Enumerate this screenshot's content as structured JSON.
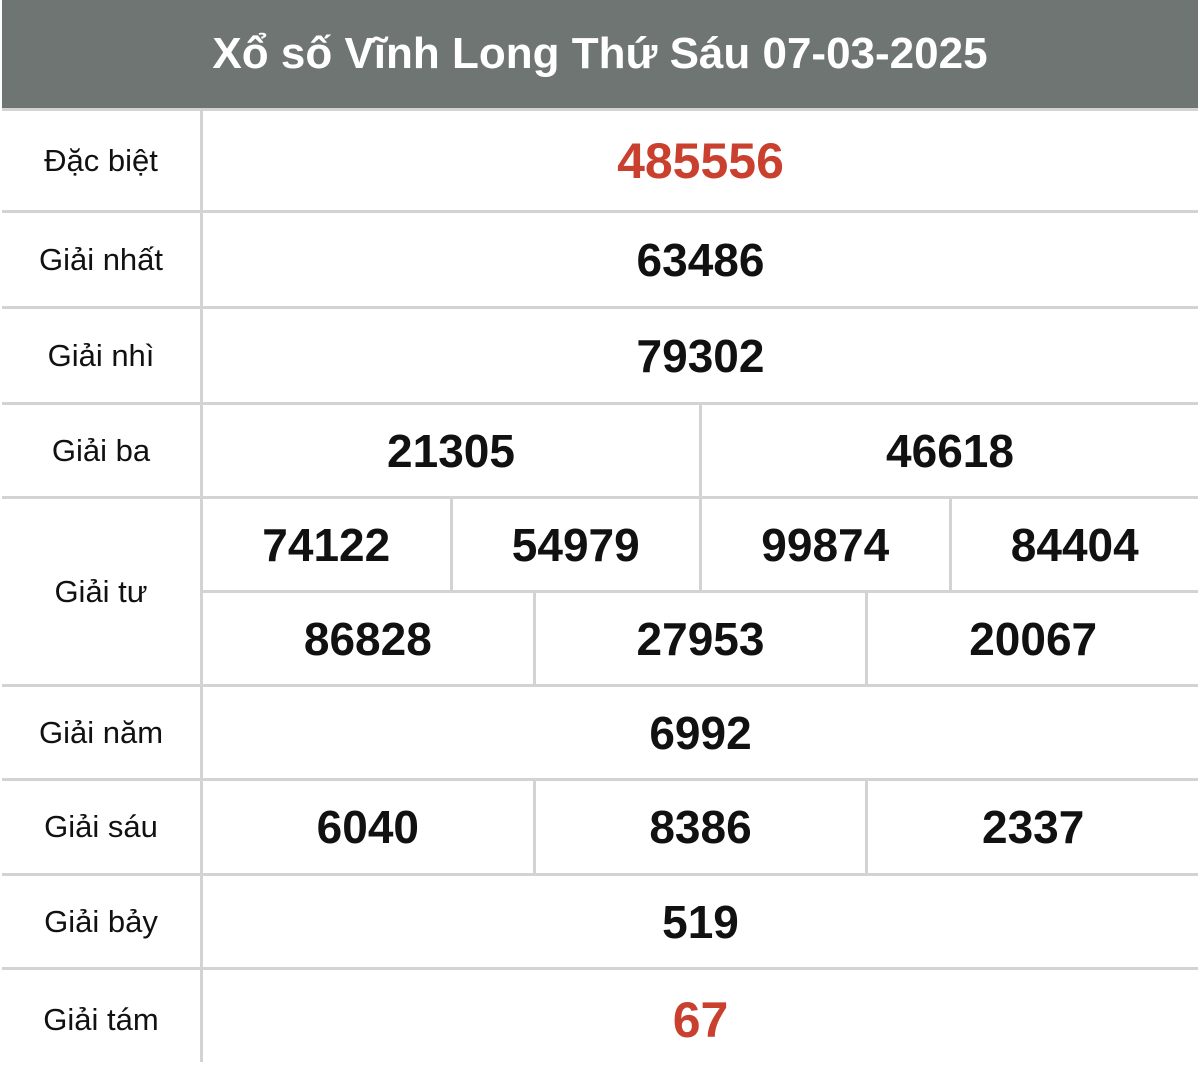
{
  "title": "Xổ số Vĩnh Long Thứ Sáu 07-03-2025",
  "colors": {
    "header_bg": "#6e7573",
    "highlight": "#c9402f",
    "border": "#d3d3d3"
  },
  "prizes": [
    {
      "label": "Đặc biệt",
      "rows": [
        [
          "485556"
        ]
      ],
      "highlight": true
    },
    {
      "label": "Giải nhất",
      "rows": [
        [
          "63486"
        ]
      ]
    },
    {
      "label": "Giải nhì",
      "rows": [
        [
          "79302"
        ]
      ]
    },
    {
      "label": "Giải ba",
      "rows": [
        [
          "21305",
          "46618"
        ]
      ]
    },
    {
      "label": "Giải tư",
      "rows": [
        [
          "74122",
          "54979",
          "99874",
          "84404"
        ],
        [
          "86828",
          "27953",
          "20067"
        ]
      ]
    },
    {
      "label": "Giải năm",
      "rows": [
        [
          "6992"
        ]
      ]
    },
    {
      "label": "Giải sáu",
      "rows": [
        [
          "6040",
          "8386",
          "2337"
        ]
      ]
    },
    {
      "label": "Giải bảy",
      "rows": [
        [
          "519"
        ]
      ]
    },
    {
      "label": "Giải tám",
      "rows": [
        [
          "67"
        ]
      ],
      "highlight": true
    }
  ]
}
